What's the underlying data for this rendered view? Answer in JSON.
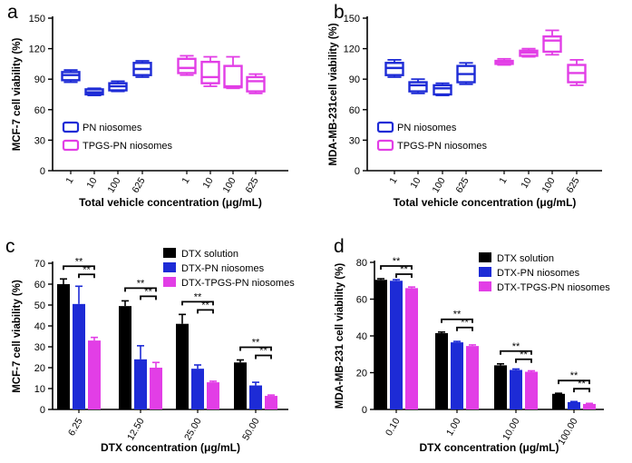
{
  "colors": {
    "blue": "#1d2bd6",
    "magenta": "#e23ee6",
    "black": "#000000",
    "axis": "#000000"
  },
  "chart_data": [
    {
      "panel": "a",
      "type": "boxplot",
      "ylabel": "MCF-7 cell viability (%)",
      "xlabel": "Total vehicle concentration (μg/mL)",
      "ylim": [
        0,
        150
      ],
      "yticks": [
        "0",
        "30",
        "60",
        "90",
        "120",
        "150"
      ],
      "ytick_values": [
        0,
        30,
        60,
        90,
        120,
        150
      ],
      "categories": [
        "1",
        "10",
        "100",
        "625"
      ],
      "legend_position": "lower-left",
      "series": [
        {
          "name": "PN niosomes",
          "color_key": "blue",
          "boxes": [
            {
              "cat": "1",
              "min": 87,
              "q1": 89,
              "median": 94,
              "q3": 97,
              "max": 99
            },
            {
              "cat": "10",
              "min": 74,
              "q1": 75,
              "median": 77,
              "q3": 80,
              "max": 81
            },
            {
              "cat": "100",
              "min": 78,
              "q1": 79,
              "median": 83,
              "q3": 86,
              "max": 88
            },
            {
              "cat": "625",
              "min": 92,
              "q1": 94,
              "median": 100,
              "q3": 106,
              "max": 108
            }
          ]
        },
        {
          "name": "TPGS-PN niosomes",
          "color_key": "magenta",
          "boxes": [
            {
              "cat": "1",
              "min": 94,
              "q1": 96,
              "median": 101,
              "q3": 110,
              "max": 113
            },
            {
              "cat": "10",
              "min": 83,
              "q1": 86,
              "median": 92,
              "q3": 107,
              "max": 112
            },
            {
              "cat": "100",
              "min": 81,
              "q1": 82,
              "median": 83,
              "q3": 103,
              "max": 112
            },
            {
              "cat": "625",
              "min": 76,
              "q1": 78,
              "median": 88,
              "q3": 92,
              "max": 95
            }
          ]
        }
      ]
    },
    {
      "panel": "b",
      "type": "boxplot",
      "ylabel": "MDA-MB-231cell viability (%)",
      "xlabel": "Total vehicle concentration (μg/mL)",
      "ylim": [
        0,
        150
      ],
      "yticks": [
        "0",
        "30",
        "60",
        "90",
        "120",
        "150"
      ],
      "ytick_values": [
        0,
        30,
        60,
        90,
        120,
        150
      ],
      "categories": [
        "1",
        "10",
        "100",
        "625"
      ],
      "legend_position": "lower-left",
      "series": [
        {
          "name": "PN niosomes",
          "color_key": "blue",
          "boxes": [
            {
              "cat": "1",
              "min": 92,
              "q1": 94,
              "median": 101,
              "q3": 106,
              "max": 109
            },
            {
              "cat": "10",
              "min": 76,
              "q1": 78,
              "median": 84,
              "q3": 87,
              "max": 90
            },
            {
              "cat": "100",
              "min": 74,
              "q1": 75,
              "median": 81,
              "q3": 84,
              "max": 86
            },
            {
              "cat": "625",
              "min": 85,
              "q1": 87,
              "median": 95,
              "q3": 103,
              "max": 106
            }
          ]
        },
        {
          "name": "TPGS-PN niosomes",
          "color_key": "magenta",
          "boxes": [
            {
              "cat": "1",
              "min": 104,
              "q1": 105,
              "median": 107,
              "q3": 108,
              "max": 110
            },
            {
              "cat": "10",
              "min": 112,
              "q1": 113,
              "median": 116,
              "q3": 118,
              "max": 120
            },
            {
              "cat": "100",
              "min": 114,
              "q1": 117,
              "median": 128,
              "q3": 132,
              "max": 138
            },
            {
              "cat": "625",
              "min": 84,
              "q1": 87,
              "median": 96,
              "q3": 104,
              "max": 109
            }
          ]
        }
      ]
    },
    {
      "panel": "c",
      "type": "bar",
      "ylabel": "MCF-7 cell viability (%)",
      "xlabel": "DTX concentration (μg/mL)",
      "ylim": [
        0,
        70
      ],
      "yticks": [
        "0",
        "10",
        "20",
        "30",
        "40",
        "50",
        "60",
        "70"
      ],
      "ytick_values": [
        0,
        10,
        20,
        30,
        40,
        50,
        60,
        70
      ],
      "categories": [
        "6.25",
        "12.50",
        "25.00",
        "50.00"
      ],
      "legend_position": "top-right",
      "series": [
        {
          "name": "DTX solution",
          "color_key": "black",
          "values": [
            60,
            49.5,
            41,
            22.5
          ],
          "errors": [
            2.5,
            2.5,
            4.5,
            1.2
          ]
        },
        {
          "name": "DTX-PN niosomes",
          "color_key": "blue",
          "values": [
            50.5,
            24,
            19.5,
            11.5
          ],
          "errors": [
            8.5,
            6.5,
            1.8,
            1.5
          ]
        },
        {
          "name": "DTX-TPGS-PN niosomes",
          "color_key": "magenta",
          "values": [
            33,
            20,
            13,
            6.5
          ],
          "errors": [
            1.5,
            2.5,
            0.5,
            0.4
          ]
        }
      ],
      "significance_label": "**"
    },
    {
      "panel": "d",
      "type": "bar",
      "ylabel": "MDA-MB-231 cell viability (%)",
      "xlabel": "DTX concentration (μg/mL)",
      "ylim": [
        0,
        80
      ],
      "yticks": [
        "0",
        "20",
        "40",
        "60",
        "80"
      ],
      "ytick_values": [
        0,
        20,
        40,
        60,
        80
      ],
      "categories": [
        "0.10",
        "1.00",
        "10.00",
        "100.00"
      ],
      "legend_position": "top-right",
      "series": [
        {
          "name": "DTX solution",
          "color_key": "black",
          "values": [
            70.5,
            41.5,
            24,
            8.5
          ],
          "errors": [
            0.6,
            0.6,
            0.8,
            0.3
          ]
        },
        {
          "name": "DTX-PN niosomes",
          "color_key": "blue",
          "values": [
            70,
            36.5,
            21.5,
            4
          ],
          "errors": [
            0.6,
            0.5,
            0.5,
            0.3
          ]
        },
        {
          "name": "DTX-TPGS-PN niosomes",
          "color_key": "magenta",
          "values": [
            66,
            34.5,
            20.5,
            3
          ],
          "errors": [
            0.6,
            0.6,
            0.5,
            0.3
          ]
        }
      ],
      "significance_label": "**"
    }
  ]
}
